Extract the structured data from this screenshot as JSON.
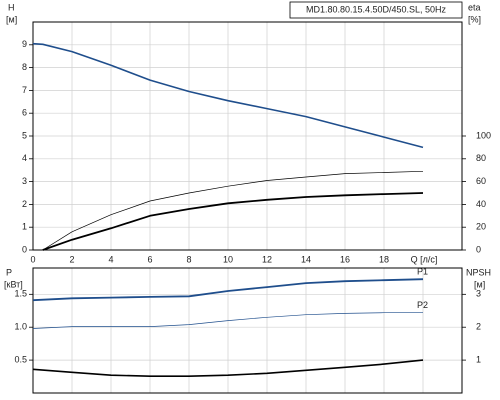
{
  "chart_data": [
    {
      "type": "line",
      "title": "MD1.80.80.15.4.50D/450.SL, 50Hz",
      "ylabel": "H",
      "yunit": "[м]",
      "y2label": "eta",
      "y2unit": "[%]",
      "xlabel": "Q [л/с]",
      "x": [
        0,
        0.5,
        2,
        4,
        6,
        8,
        10,
        12,
        14,
        16,
        18,
        20
      ],
      "xlim": [
        0,
        22
      ],
      "xticks": [
        0,
        2,
        4,
        6,
        8,
        10,
        12,
        14,
        16,
        18
      ],
      "ylim": [
        0,
        10
      ],
      "yticks": [
        0,
        1,
        2,
        3,
        4,
        5,
        6,
        7,
        8,
        9
      ],
      "y2lim": [
        0,
        200
      ],
      "y2ticks": [
        0,
        20,
        40,
        60,
        80,
        100
      ],
      "grid": true,
      "series": [
        {
          "color": "#1f4e8c",
          "width": 1.6,
          "values": [
            9.05,
            9.02,
            8.7,
            8.1,
            7.45,
            6.95,
            6.55,
            6.2,
            5.85,
            5.4,
            4.95,
            4.5
          ]
        },
        {
          "color": "#000000",
          "width": 0.7,
          "axis": "y2",
          "values": [
            null,
            0,
            16,
            31,
            43,
            50,
            56,
            61,
            64,
            67,
            68,
            69
          ]
        },
        {
          "color": "#000000",
          "width": 1.8,
          "axis": "y2",
          "values": [
            null,
            0,
            9,
            19,
            30,
            36,
            41,
            44,
            46.5,
            48,
            49,
            50
          ]
        }
      ]
    },
    {
      "type": "line",
      "ylabel": "P",
      "yunit": "[кВт]",
      "y2label": "NPSH",
      "y2unit": "[м]",
      "x": [
        0,
        2,
        4,
        6,
        8,
        10,
        12,
        14,
        16,
        18,
        20
      ],
      "xlim": [
        0,
        22
      ],
      "xticks": [
        0,
        2,
        4,
        6,
        8,
        10,
        12,
        14,
        16,
        18,
        20
      ],
      "ylim": [
        0,
        1.9
      ],
      "yticks": [
        0.5,
        {
          "value": 1,
          "label": "1.0"
        },
        1.5
      ],
      "y2lim": [
        0,
        3.8
      ],
      "y2ticks": [
        1,
        2,
        3
      ],
      "grid": true,
      "series": [
        {
          "name": "P1",
          "color": "#1f4e8c",
          "width": 1.8,
          "values": [
            1.41,
            1.44,
            1.45,
            1.46,
            1.47,
            1.55,
            1.61,
            1.67,
            1.7,
            1.715,
            1.73
          ]
        },
        {
          "name": "P2",
          "color": "#1f4e8c",
          "width": 0.7,
          "values": [
            0.98,
            1.01,
            1.01,
            1.01,
            1.04,
            1.1,
            1.15,
            1.19,
            1.21,
            1.22,
            1.22
          ]
        },
        {
          "color": "#000000",
          "width": 1.6,
          "axis": "y2",
          "values": [
            0.72,
            0.63,
            0.54,
            0.51,
            0.51,
            0.54,
            0.6,
            0.69,
            0.78,
            0.88,
            1.0
          ]
        }
      ]
    }
  ]
}
